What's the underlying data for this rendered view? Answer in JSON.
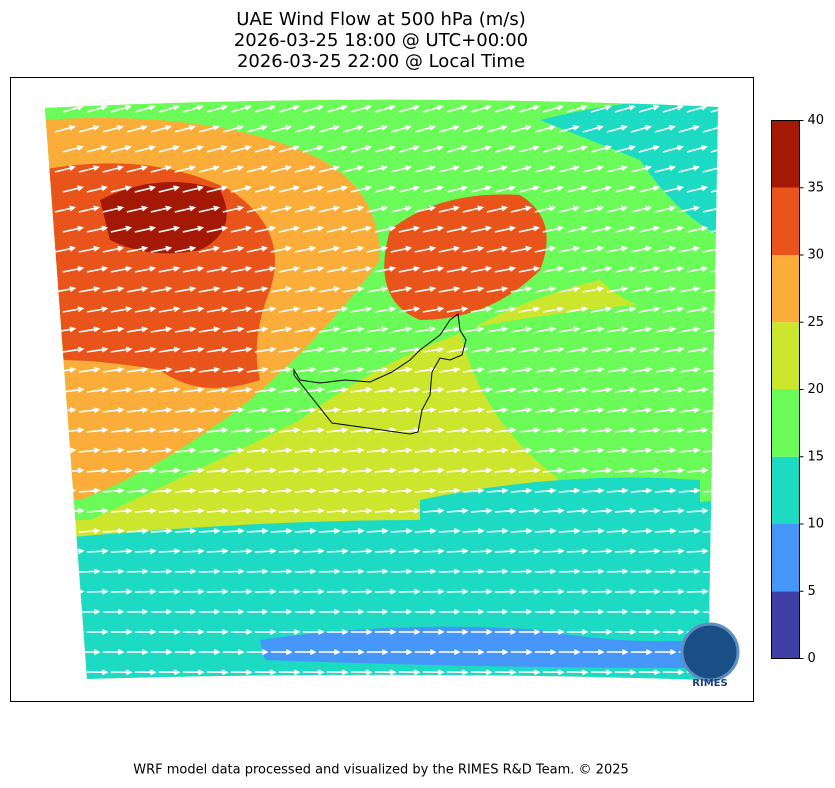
{
  "title": [
    "UAE Wind Flow at 500 hPa (m/s)",
    "2026-03-25 18:00 @ UTC+00:00",
    "2026-03-25 22:00 @ Local Time"
  ],
  "colorbar": {
    "ticks": [
      0,
      5,
      10,
      15,
      20,
      25,
      30,
      35,
      40
    ],
    "colors": [
      "#3f3fa6",
      "#4696f8",
      "#1ddbc3",
      "#6afb58",
      "#cbe62c",
      "#fbad3a",
      "#e8541a",
      "#a31906"
    ]
  },
  "logo": "RIMES",
  "footer": "WRF model data processed and visualized by the RIMES R&D Team. © 2025"
}
